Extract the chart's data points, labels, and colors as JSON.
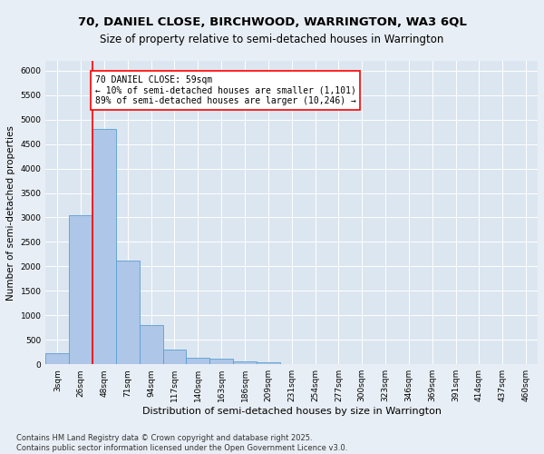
{
  "title1": "70, DANIEL CLOSE, BIRCHWOOD, WARRINGTON, WA3 6QL",
  "title2": "Size of property relative to semi-detached houses in Warrington",
  "xlabel": "Distribution of semi-detached houses by size in Warrington",
  "ylabel": "Number of semi-detached properties",
  "categories": [
    "3sqm",
    "26sqm",
    "48sqm",
    "71sqm",
    "94sqm",
    "117sqm",
    "140sqm",
    "163sqm",
    "186sqm",
    "209sqm",
    "231sqm",
    "254sqm",
    "277sqm",
    "300sqm",
    "323sqm",
    "346sqm",
    "369sqm",
    "391sqm",
    "414sqm",
    "437sqm",
    "460sqm"
  ],
  "bar_values": [
    230,
    3050,
    4800,
    2120,
    800,
    305,
    130,
    110,
    60,
    35,
    0,
    0,
    0,
    0,
    0,
    0,
    0,
    0,
    0,
    0,
    0
  ],
  "bar_color": "#aec6e8",
  "bar_edge_color": "#5a9fd4",
  "vline_color": "red",
  "annotation_text": "70 DANIEL CLOSE: 59sqm\n← 10% of semi-detached houses are smaller (1,101)\n89% of semi-detached houses are larger (10,246) →",
  "ylim": [
    0,
    6200
  ],
  "yticks": [
    0,
    500,
    1000,
    1500,
    2000,
    2500,
    3000,
    3500,
    4000,
    4500,
    5000,
    5500,
    6000
  ],
  "plot_bg_color": "#dce6f0",
  "fig_bg_color": "#e8eef5",
  "footnote": "Contains HM Land Registry data © Crown copyright and database right 2025.\nContains public sector information licensed under the Open Government Licence v3.0.",
  "title1_fontsize": 9.5,
  "title2_fontsize": 8.5,
  "xlabel_fontsize": 8,
  "ylabel_fontsize": 7.5,
  "tick_fontsize": 6.5,
  "annotation_fontsize": 7,
  "footnote_fontsize": 6
}
